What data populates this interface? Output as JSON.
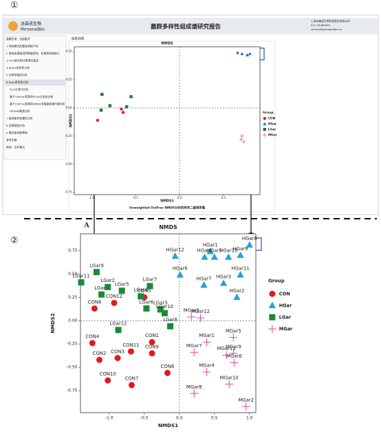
{
  "screenshot": {
    "logo": "派森诺生物",
    "logo_en": "PersonalBio",
    "title": "菌群多样性组成谱研究报告",
    "contact": [
      "上海派森诺生物科技股份有限公司",
      "021-54480000",
      "service@personalbio.cn"
    ],
    "menu": [
      "隐藏目录 · 全部展开",
      "1 项目概况及整体流程介绍",
      "2 原始高通量测序数据质控、处理和质量统计",
      "3 OTU划分和分类地位鉴定",
      "4 Alpha多样性分析",
      "5 分类学组成分析",
      "6 Beta多样性分析",
      "PCA主成分分析",
      "基于UniFrac距离的PCoA主坐标分析",
      "基于UniFrac距离的NMDS非度量多维尺度分析",
      "UPGMA聚类分析",
      "7 组间差异显著性分析",
      "8 关联网络分析",
      "9 微生物功能预测",
      "参考文献",
      "附录：文件格式"
    ],
    "section": "结果说明"
  },
  "markers": {
    "one": "①",
    "two": "②",
    "a": "A"
  },
  "chart_data": [
    {
      "type": "scatter",
      "title": "NMDS",
      "x_label": "NMDS1",
      "y_label": "NMDS2",
      "caption": "Unweighted UniFrac NMDS分析的样本二维排序图",
      "legend_title": "Group",
      "xlim": [
        -1.195,
        0.914
      ],
      "ylim": [
        -0.77,
        0.543
      ],
      "xticks": [
        {
          "value": -1.0,
          "label": "-1.0"
        },
        -0.5,
        {
          "value": 0.0,
          "label": "0.0"
        },
        0.5
      ],
      "yticks": [
        {
          "value": 0.5,
          "label": "0.50"
        },
        0.25,
        {
          "value": 0.0,
          "label": "0.00"
        },
        -0.25,
        {
          "value": -0.5,
          "label": "-0.50"
        },
        {
          "value": -0.75,
          "label": "-0.75"
        }
      ],
      "series": [
        {
          "name": "CON",
          "color": "#e31a1c",
          "marker": "circle",
          "x": [
            -0.66,
            -0.64,
            -0.93
          ],
          "values": [
            -0.01,
            -0.04,
            -0.11
          ]
        },
        {
          "name": "HGar",
          "color": "#1f6fd0",
          "marker": "triangle",
          "x": [
            0.66,
            0.71,
            0.77,
            0.8
          ],
          "values": [
            0.49,
            0.48,
            0.47,
            0.48
          ]
        },
        {
          "name": "LGar",
          "color": "#1a7a30",
          "marker": "square",
          "x": [
            -0.88,
            -0.55,
            -0.79,
            -0.6,
            -0.89
          ],
          "values": [
            0.12,
            0.1,
            0.02,
            0.01,
            -0.02
          ]
        },
        {
          "name": "MGar",
          "color": "#e87ab8",
          "marker": "plus",
          "x": [
            0.71,
            0.7,
            0.73
          ],
          "values": [
            -0.25,
            -0.28,
            -0.3
          ]
        }
      ]
    },
    {
      "type": "scatter",
      "title": "NMDS",
      "x_label": "NMDS1",
      "y_label": "NMDS2",
      "legend_title": "Group",
      "xlim": [
        -1.41,
        1.09
      ],
      "ylim": [
        -0.985,
        0.93
      ],
      "xticks": [
        {
          "value": -1.0,
          "label": "-1.0"
        },
        -0.5,
        {
          "value": 0.0,
          "label": "0.0"
        },
        0.5,
        {
          "value": 1.0,
          "label": "1.0"
        }
      ],
      "yticks": [
        0.75,
        {
          "value": 0.5,
          "label": "0.50"
        },
        0.25,
        {
          "value": 0.0,
          "label": "0.00"
        },
        -0.25,
        {
          "value": -0.5,
          "label": "-0.50"
        },
        -0.75
      ],
      "series": [
        {
          "name": "CON",
          "color": "#e31a1c",
          "marker": "circle",
          "labels": [
            "CON1",
            "CON2",
            "CON3",
            "CON4",
            "CON5",
            "CON6",
            "CON7",
            "CON8",
            "CON9",
            "CON10",
            "CON11",
            "CON12"
          ],
          "x": [
            -0.39,
            -1.14,
            -0.88,
            -1.24,
            -0.5,
            -0.17,
            -0.68,
            -1.21,
            -0.39,
            -1.02,
            -0.69,
            -0.93
          ],
          "values": [
            -0.23,
            -0.42,
            -0.4,
            -0.24,
            0.25,
            -0.56,
            -0.69,
            0.13,
            -0.35,
            -0.64,
            -0.33,
            0.19
          ]
        },
        {
          "name": "HGar",
          "color": "#2a9fd8",
          "marker": "triangle",
          "labels": [
            "HGar1",
            "HGar2",
            "HGar3",
            "HGar4",
            "HGar5",
            "HGar6",
            "HGar7",
            "HGar8",
            "HGar9",
            "HGar10",
            "HGar11",
            "HGar12"
          ],
          "x": [
            0.44,
            0.82,
            0.63,
            0.36,
            0.5,
            0.01,
            0.35,
            1.0,
            0.87,
            0.7,
            0.87,
            -0.06
          ],
          "values": [
            0.74,
            0.25,
            0.4,
            0.68,
            0.68,
            0.49,
            0.38,
            0.81,
            0.7,
            0.68,
            0.49,
            0.69
          ]
        },
        {
          "name": "LGar",
          "color": "#1a8a3a",
          "marker": "square",
          "labels": [
            "LGar1",
            "LGar2",
            "LGar3",
            "LGar4",
            "LGar5",
            "LGar6",
            "LGar7",
            "LGar8",
            "LGar9",
            "LGar10",
            "LGar11",
            "LGar12"
          ],
          "x": [
            -1.11,
            -1.02,
            -0.27,
            -0.55,
            -0.82,
            -0.47,
            -0.42,
            -0.13,
            -1.18,
            -0.21,
            -1.4,
            -0.87
          ],
          "values": [
            0.28,
            0.36,
            0.12,
            0.26,
            0.32,
            0.13,
            0.37,
            -0.06,
            0.52,
            0.08,
            0.41,
            -0.1
          ]
        },
        {
          "name": "MGar",
          "color": "#e0409a",
          "marker": "plus",
          "labels": [
            "MGar1",
            "MGar2",
            "MGar3",
            "MGar4",
            "MGar5",
            "MGar6",
            "MGar7",
            "MGar8",
            "MGar9",
            "MGar10",
            "MGar11",
            "MGar12"
          ],
          "x": [
            0.39,
            0.95,
            0.17,
            0.39,
            0.77,
            0.78,
            0.21,
            0.21,
            0.77,
            0.71,
            0.67,
            0.3
          ],
          "values": [
            -0.23,
            -0.92,
            0.04,
            -0.55,
            -0.18,
            -0.45,
            -0.34,
            -0.78,
            -0.35,
            -0.68,
            -0.37,
            0.03
          ]
        }
      ]
    }
  ]
}
